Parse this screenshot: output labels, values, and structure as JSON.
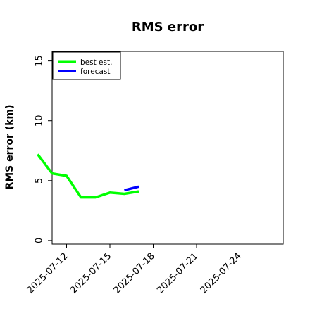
{
  "chart_data": {
    "type": "line",
    "title": "RMS error",
    "xlabel": "",
    "ylabel": "RMS error (km)",
    "x_ticks": [
      "2025-07-12",
      "2025-07-15",
      "2025-07-18",
      "2025-07-21",
      "2025-07-24"
    ],
    "xlim": [
      "2025-07-11",
      "2025-07-27"
    ],
    "y_ticks": [
      0,
      5,
      10,
      15
    ],
    "ylim": [
      -0.3,
      15.8
    ],
    "grid": false,
    "legend_position": "top-left",
    "series": [
      {
        "name": "best est.",
        "color": "#00ff00",
        "points": [
          {
            "x": "2025-07-10",
            "y": 7.2
          },
          {
            "x": "2025-07-11",
            "y": 5.6
          },
          {
            "x": "2025-07-12",
            "y": 5.4
          },
          {
            "x": "2025-07-13",
            "y": 3.6
          },
          {
            "x": "2025-07-14",
            "y": 3.6
          },
          {
            "x": "2025-07-15",
            "y": 4.0
          },
          {
            "x": "2025-07-16",
            "y": 3.9
          },
          {
            "x": "2025-07-17",
            "y": 4.1
          }
        ]
      },
      {
        "name": "forecast",
        "color": "#0000ff",
        "points": [
          {
            "x": "2025-07-16",
            "y": 4.2
          },
          {
            "x": "2025-07-17",
            "y": 4.5
          }
        ]
      }
    ]
  }
}
